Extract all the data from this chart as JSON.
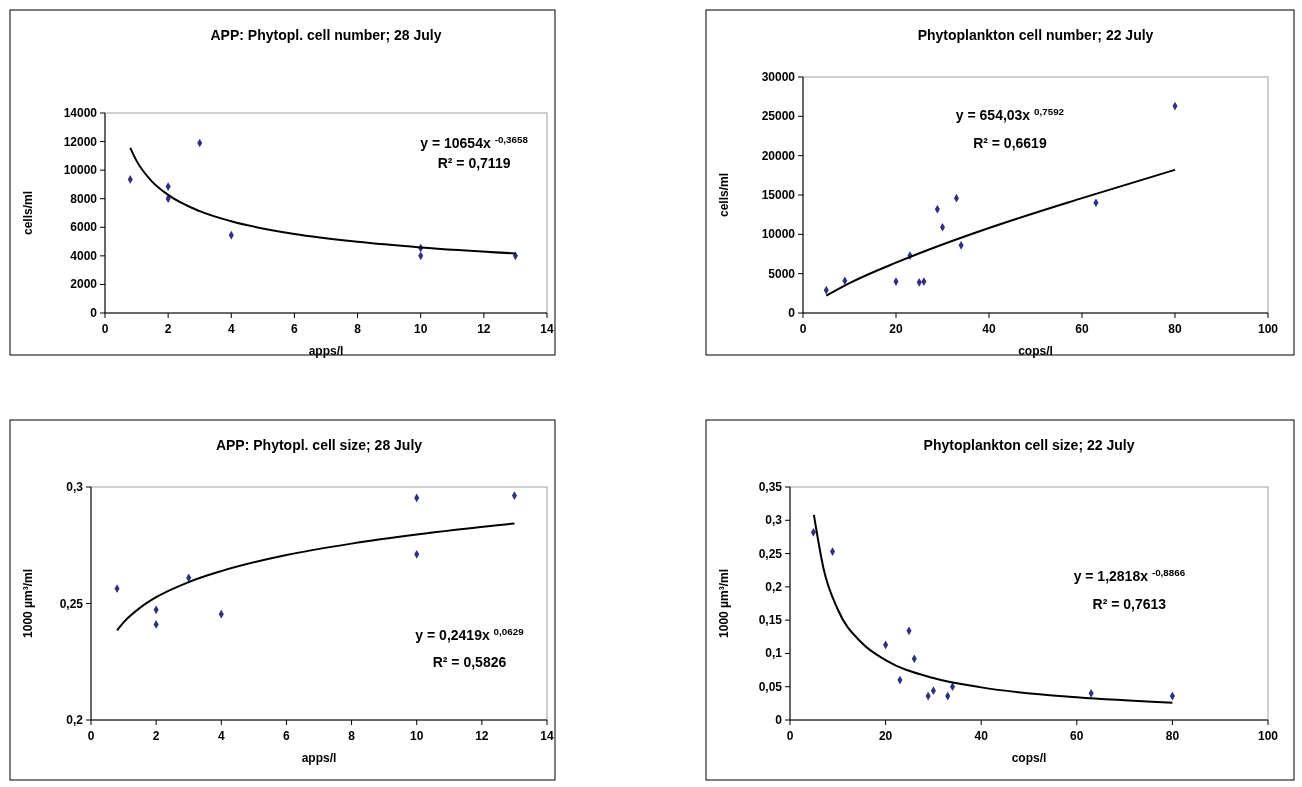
{
  "chart_data": [
    {
      "type": "scatter",
      "title": "APP: Phytopl. cell number; 28 July",
      "xlabel": "apps/l",
      "ylabel": "cells/ml",
      "xlim": [
        0,
        14
      ],
      "xticks": [
        0,
        2,
        4,
        6,
        8,
        10,
        12,
        14
      ],
      "ylim": [
        0,
        14000
      ],
      "yticks": [
        0,
        2000,
        4000,
        6000,
        8000,
        10000,
        12000,
        14000
      ],
      "grid": false,
      "marker": "diamond",
      "series": [
        {
          "color": "#2e3080",
          "x": [
            0.8,
            2,
            2,
            3,
            4,
            10,
            10,
            13
          ],
          "values": [
            9350,
            8850,
            8000,
            11900,
            5450,
            4550,
            4000,
            4000
          ]
        },
        {
          "type": "line",
          "color": "#000000",
          "marker": "none",
          "x": [
            0.8,
            1,
            1.5,
            2,
            3,
            4,
            6,
            8,
            10,
            13
          ],
          "values": [
            11560,
            10650,
            9180,
            8270,
            7130,
            6420,
            5530,
            4980,
            4590,
            4170
          ]
        }
      ],
      "annotations": [
        "y = 10654x $^{-0,3658}$",
        "R² = 0,7119"
      ]
    },
    {
      "type": "scatter",
      "title": "Phytoplankton cell number; 22 July",
      "xlabel": "cops/l",
      "ylabel": "cells/ml",
      "xlim": [
        0,
        100
      ],
      "xticks": [
        0,
        20,
        40,
        60,
        80,
        100
      ],
      "ylim": [
        0,
        30000
      ],
      "yticks": [
        0,
        5000,
        10000,
        15000,
        20000,
        25000,
        30000
      ],
      "grid": false,
      "marker": "diamond",
      "series": [
        {
          "color": "#2e3080",
          "x": [
            5,
            9,
            20,
            23,
            25,
            26,
            28.9,
            30,
            33,
            34,
            63,
            80
          ],
          "values": [
            2900,
            4100,
            4000,
            7300,
            3900,
            4000,
            13200,
            10900,
            14600,
            8600,
            14000,
            26300
          ]
        },
        {
          "type": "line",
          "color": "#000000",
          "marker": "none",
          "x": [
            5,
            10,
            20,
            30,
            40,
            60,
            80
          ],
          "values": [
            2200,
            3800,
            6400,
            8700,
            10800,
            14600,
            18200
          ]
        }
      ],
      "annotations": [
        "y = 654,03x $^{0,7592}$",
        "R² = 0,6619"
      ]
    },
    {
      "type": "scatter",
      "title": "APP: Phytopl. cell size; 28 July",
      "xlabel": "apps/l",
      "ylabel": "1000 µm³/ml",
      "xlim": [
        0,
        14
      ],
      "xticks": [
        0,
        2,
        4,
        6,
        8,
        10,
        12,
        14
      ],
      "ylim": [
        0.2,
        0.3
      ],
      "yticks": [
        {
          "value": 0.2,
          "label": "0,2"
        },
        {
          "value": 0.25,
          "label": "0,25"
        },
        {
          "value": 0.3,
          "label": "0,3"
        }
      ],
      "grid": false,
      "marker": "diamond",
      "series": [
        {
          "color": "#2e3080",
          "x": [
            0.8,
            2,
            2,
            3,
            4,
            10,
            10,
            13
          ],
          "values": [
            0.2564,
            0.2473,
            0.241,
            0.261,
            0.2454,
            0.2953,
            0.2711,
            0.2963
          ]
        },
        {
          "type": "line",
          "color": "#000000",
          "marker": "none",
          "x": [
            0.8,
            1,
            1.5,
            2,
            3,
            4,
            6,
            8,
            10,
            13
          ],
          "values": [
            0.2385,
            0.2419,
            0.2481,
            0.2527,
            0.2592,
            0.2639,
            0.2708,
            0.2757,
            0.2796,
            0.2843
          ]
        }
      ],
      "annotations": [
        "y = 0,2419x $^{0,0629}$",
        "R² = 0,5826"
      ]
    },
    {
      "type": "scatter",
      "title": "Phytoplankton cell size; 22 July",
      "xlabel": "cops/l",
      "ylabel": "1000 µm³/ml",
      "xlim": [
        0,
        100
      ],
      "xticks": [
        0,
        20,
        40,
        60,
        80,
        100
      ],
      "ylim": [
        0,
        0.35
      ],
      "yticks": [
        0,
        {
          "value": 0.05,
          "label": "0,05"
        },
        {
          "value": 0.1,
          "label": "0,1"
        },
        {
          "value": 0.15,
          "label": "0,15"
        },
        {
          "value": 0.2,
          "label": "0,2"
        },
        {
          "value": 0.25,
          "label": "0,25"
        },
        {
          "value": 0.3,
          "label": "0,3"
        },
        {
          "value": 0.35,
          "label": "0,35"
        }
      ],
      "grid": false,
      "marker": "diamond",
      "series": [
        {
          "color": "#2e3080",
          "x": [
            4.9,
            8.9,
            20,
            23,
            24.9,
            26,
            28.9,
            30,
            33,
            34,
            63,
            80
          ],
          "values": [
            0.282,
            0.253,
            0.113,
            0.06,
            0.134,
            0.092,
            0.036,
            0.044,
            0.036,
            0.05,
            0.04,
            0.036
          ]
        },
        {
          "type": "line",
          "color": "#000000",
          "marker": "none",
          "x": [
            5,
            7,
            10,
            15,
            20,
            30,
            40,
            60,
            80
          ],
          "values": [
            0.308,
            0.228,
            0.166,
            0.116,
            0.09,
            0.063,
            0.049,
            0.034,
            0.026
          ]
        }
      ],
      "annotations": [
        "y = 1,2818x $^{-0,8866}$",
        "R² = 0,7613"
      ]
    }
  ]
}
